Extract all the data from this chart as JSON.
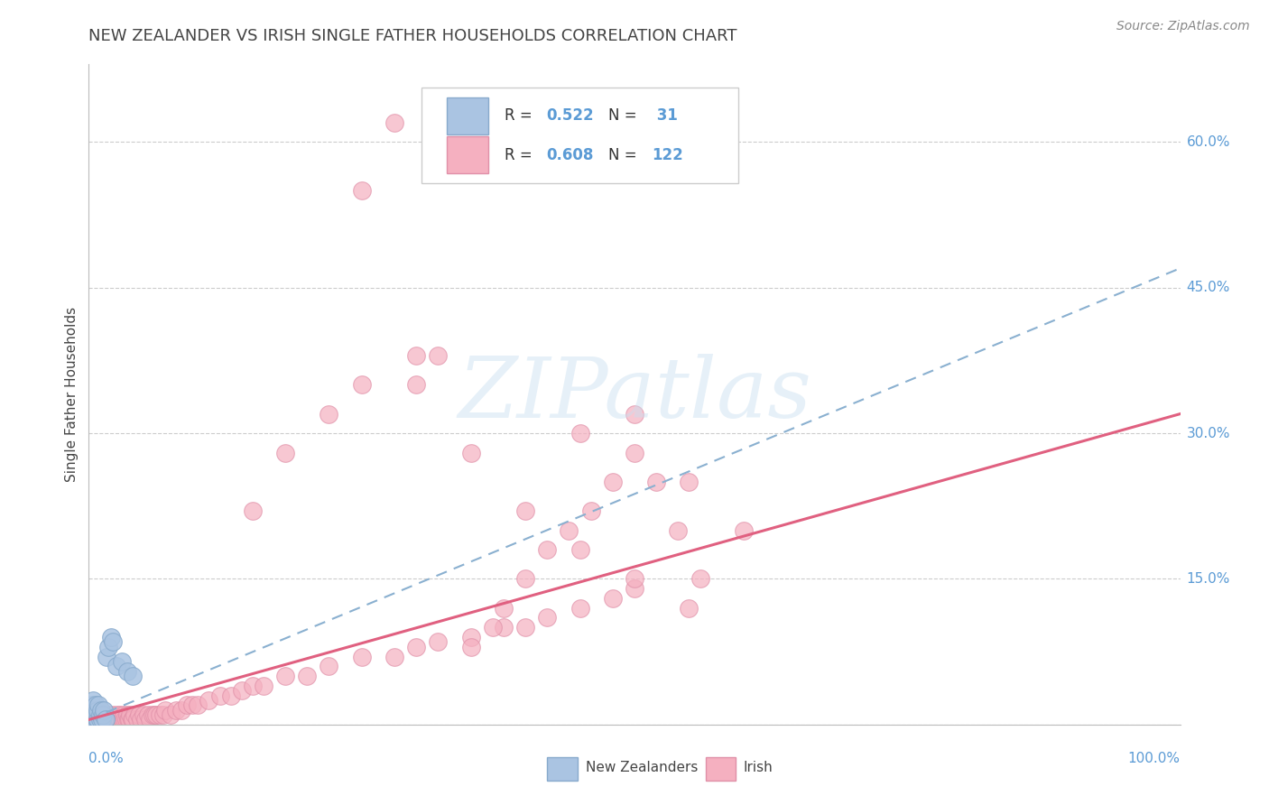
{
  "title": "NEW ZEALANDER VS IRISH SINGLE FATHER HOUSEHOLDS CORRELATION CHART",
  "source": "Source: ZipAtlas.com",
  "ylabel": "Single Father Households",
  "legend_nz": "New Zealanders",
  "legend_irish": "Irish",
  "r_nz": 0.522,
  "n_nz": 31,
  "r_irish": 0.608,
  "n_irish": 122,
  "color_nz": "#aac4e2",
  "color_irish": "#f5b0c0",
  "edge_nz": "#88aacc",
  "edge_irish": "#e090a8",
  "line_color_nz": "#8ab0d0",
  "line_color_irish": "#e06080",
  "yticks": [
    0.0,
    0.15,
    0.3,
    0.45,
    0.6
  ],
  "ytick_labels": [
    "",
    "15.0%",
    "30.0%",
    "45.0%",
    "60.0%"
  ],
  "xlim": [
    0.0,
    1.0
  ],
  "ylim": [
    0.0,
    0.68
  ],
  "watermark": "ZIPatlas",
  "title_color": "#444444",
  "axis_label_color": "#5b9bd5",
  "nz_x": [
    0.001,
    0.002,
    0.002,
    0.003,
    0.003,
    0.004,
    0.004,
    0.005,
    0.005,
    0.006,
    0.006,
    0.007,
    0.007,
    0.008,
    0.008,
    0.009,
    0.01,
    0.01,
    0.011,
    0.012,
    0.013,
    0.014,
    0.015,
    0.016,
    0.018,
    0.02,
    0.022,
    0.025,
    0.03,
    0.035,
    0.04
  ],
  "nz_y": [
    0.01,
    0.005,
    0.015,
    0.005,
    0.02,
    0.01,
    0.025,
    0.005,
    0.01,
    0.015,
    0.02,
    0.005,
    0.01,
    0.005,
    0.015,
    0.02,
    0.005,
    0.01,
    0.015,
    0.005,
    0.01,
    0.015,
    0.005,
    0.07,
    0.08,
    0.09,
    0.085,
    0.06,
    0.065,
    0.055,
    0.05
  ],
  "irish_dense_x": [
    0.001,
    0.001,
    0.001,
    0.002,
    0.002,
    0.002,
    0.003,
    0.003,
    0.003,
    0.004,
    0.004,
    0.005,
    0.005,
    0.006,
    0.006,
    0.007,
    0.007,
    0.008,
    0.008,
    0.009,
    0.01,
    0.01,
    0.011,
    0.012,
    0.013,
    0.014,
    0.015,
    0.016,
    0.017,
    0.018,
    0.019,
    0.02,
    0.021,
    0.022,
    0.023,
    0.024,
    0.025,
    0.026,
    0.027,
    0.028,
    0.029,
    0.03,
    0.031,
    0.032,
    0.033,
    0.034,
    0.035,
    0.036,
    0.037,
    0.038,
    0.039,
    0.04,
    0.042,
    0.044,
    0.046,
    0.048,
    0.05,
    0.052,
    0.054,
    0.056,
    0.058,
    0.06,
    0.062,
    0.065,
    0.068,
    0.07,
    0.075,
    0.08,
    0.085,
    0.09,
    0.095,
    0.1,
    0.11,
    0.12,
    0.13,
    0.14,
    0.15,
    0.16,
    0.18,
    0.2,
    0.22,
    0.25,
    0.28,
    0.3,
    0.32,
    0.35,
    0.38,
    0.4,
    0.42,
    0.45,
    0.48,
    0.5
  ],
  "irish_dense_y": [
    0.005,
    0.01,
    0.015,
    0.005,
    0.01,
    0.015,
    0.005,
    0.01,
    0.015,
    0.005,
    0.01,
    0.005,
    0.01,
    0.005,
    0.01,
    0.005,
    0.01,
    0.005,
    0.01,
    0.005,
    0.005,
    0.01,
    0.005,
    0.005,
    0.01,
    0.005,
    0.005,
    0.01,
    0.005,
    0.005,
    0.01,
    0.005,
    0.005,
    0.01,
    0.005,
    0.005,
    0.005,
    0.01,
    0.005,
    0.005,
    0.01,
    0.005,
    0.005,
    0.01,
    0.005,
    0.005,
    0.01,
    0.005,
    0.005,
    0.01,
    0.005,
    0.005,
    0.01,
    0.005,
    0.01,
    0.005,
    0.01,
    0.005,
    0.01,
    0.005,
    0.01,
    0.01,
    0.01,
    0.01,
    0.01,
    0.015,
    0.01,
    0.015,
    0.015,
    0.02,
    0.02,
    0.02,
    0.025,
    0.03,
    0.03,
    0.035,
    0.04,
    0.04,
    0.05,
    0.05,
    0.06,
    0.07,
    0.07,
    0.08,
    0.085,
    0.09,
    0.1,
    0.1,
    0.11,
    0.12,
    0.13,
    0.14
  ],
  "irish_scatter_x": [
    0.35,
    0.37,
    0.38,
    0.4,
    0.42,
    0.44,
    0.46,
    0.48,
    0.5,
    0.52,
    0.54,
    0.56,
    0.3,
    0.32,
    0.25,
    0.28,
    0.45,
    0.5,
    0.55,
    0.6,
    0.15,
    0.18,
    0.22,
    0.25,
    0.3,
    0.35,
    0.4,
    0.45,
    0.5,
    0.55
  ],
  "irish_scatter_y": [
    0.08,
    0.1,
    0.12,
    0.15,
    0.18,
    0.2,
    0.22,
    0.25,
    0.28,
    0.25,
    0.2,
    0.15,
    0.35,
    0.38,
    0.55,
    0.62,
    0.3,
    0.32,
    0.25,
    0.2,
    0.22,
    0.28,
    0.32,
    0.35,
    0.38,
    0.28,
    0.22,
    0.18,
    0.15,
    0.12
  ],
  "nz_line_x": [
    0.0,
    1.0
  ],
  "nz_line_y": [
    0.005,
    0.47
  ],
  "irish_line_x": [
    0.0,
    1.0
  ],
  "irish_line_y": [
    0.005,
    0.32
  ]
}
